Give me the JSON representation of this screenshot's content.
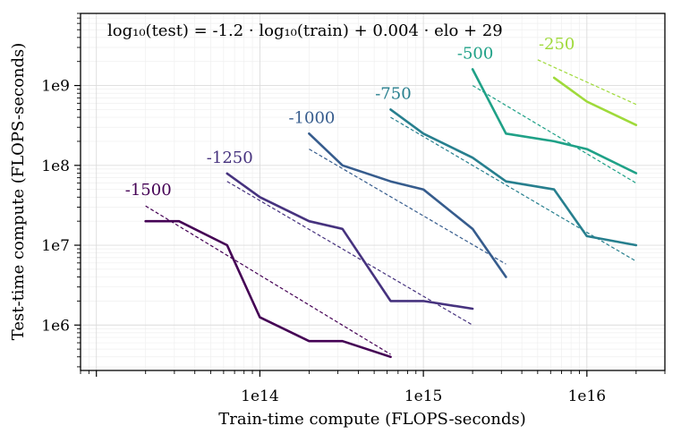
{
  "chart_data": {
    "type": "line",
    "annotation": "log₁₀(test) = -1.2 · log₁₀(train) + 0.004 · elo + 29",
    "xlabel": "Train-time compute (FLOPS-seconds)",
    "ylabel": "Test-time compute (FLOPS-seconds)",
    "xscale": "log",
    "yscale": "log",
    "xlim": [
      8000000000000.0,
      3e+16
    ],
    "ylim": [
      270000.0,
      8000000000.0
    ],
    "x_ticks": [
      {
        "value": 100000000000000.0,
        "label": "1e14"
      },
      {
        "value": 1000000000000000.0,
        "label": "1e15"
      },
      {
        "value": 1e+16,
        "label": "1e16"
      }
    ],
    "y_ticks": [
      {
        "value": 1000000.0,
        "label": "1e6"
      },
      {
        "value": 10000000.0,
        "label": "1e7"
      },
      {
        "value": 100000000.0,
        "label": "1e8"
      },
      {
        "value": 1000000000.0,
        "label": "1e9"
      }
    ],
    "grid": true,
    "series": [
      {
        "name": "-1500",
        "elo": -1500,
        "color": "#440154",
        "x": [
          20000000000000.0,
          32000000000000.0,
          63000000000000.0,
          100000000000000.0,
          200000000000000.0,
          320000000000000.0,
          630000000000000.0
        ],
        "y": [
          20000000.0,
          20000000.0,
          10000000.0,
          1250000.0,
          630000.0,
          630000.0,
          400000.0
        ],
        "fit": {
          "x": [
            20000000000000.0,
            630000000000000.0
          ],
          "y": [
            31000000.0,
            430000.0
          ]
        }
      },
      {
        "name": "-1250",
        "elo": -1250,
        "color": "#46327e",
        "x": [
          63000000000000.0,
          100000000000000.0,
          200000000000000.0,
          320000000000000.0,
          630000000000000.0,
          1000000000000000.0,
          2000000000000000.0
        ],
        "y": [
          79000000.0,
          40000000.0,
          20000000.0,
          16000000.0,
          2000000.0,
          2000000.0,
          1600000.0
        ],
        "fit": {
          "x": [
            63000000000000.0,
            2000000000000000.0
          ],
          "y": [
            63000000.0,
            1000000.0
          ]
        }
      },
      {
        "name": "-1000",
        "elo": -1000,
        "color": "#365c8d",
        "x": [
          200000000000000.0,
          320000000000000.0,
          630000000000000.0,
          1000000000000000.0,
          2000000000000000.0,
          3200000000000000.0
        ],
        "y": [
          250000000.0,
          100000000.0,
          63000000.0,
          50000000.0,
          16000000.0,
          4000000.0
        ],
        "fit": {
          "x": [
            200000000000000.0,
            3200000000000000.0
          ],
          "y": [
            160000000.0,
            5800000.0
          ]
        }
      },
      {
        "name": "-750",
        "elo": -750,
        "color": "#277f8e",
        "x": [
          630000000000000.0,
          1000000000000000.0,
          2000000000000000.0,
          3200000000000000.0,
          6300000000000000.0,
          1e+16,
          2e+16
        ],
        "y": [
          500000000.0,
          250000000.0,
          125000000.0,
          63000000.0,
          50000000.0,
          13000000.0,
          10000000.0
        ],
        "fit": {
          "x": [
            630000000000000.0,
            2e+16
          ],
          "y": [
            400000000.0,
            6300000.0
          ]
        }
      },
      {
        "name": "-500",
        "elo": -500,
        "color": "#1fa187",
        "x": [
          2000000000000000.0,
          3200000000000000.0,
          6300000000000000.0,
          1e+16,
          2e+16
        ],
        "y": [
          1600000000.0,
          250000000.0,
          200000000.0,
          160000000.0,
          80000000.0
        ],
        "fit": {
          "x": [
            2000000000000000.0,
            2e+16
          ],
          "y": [
            1000000000.0,
            60000000.0
          ]
        }
      },
      {
        "name": "-250",
        "elo": -250,
        "color": "#9fda3a",
        "x": [
          6300000000000000.0,
          1e+16,
          2e+16
        ],
        "y": [
          1250000000.0,
          630000000.0,
          320000000.0
        ],
        "fit": {
          "x": [
            5000000000000000.0,
            2e+16
          ],
          "y": [
            2100000000.0,
            580000000.0
          ]
        }
      }
    ]
  }
}
